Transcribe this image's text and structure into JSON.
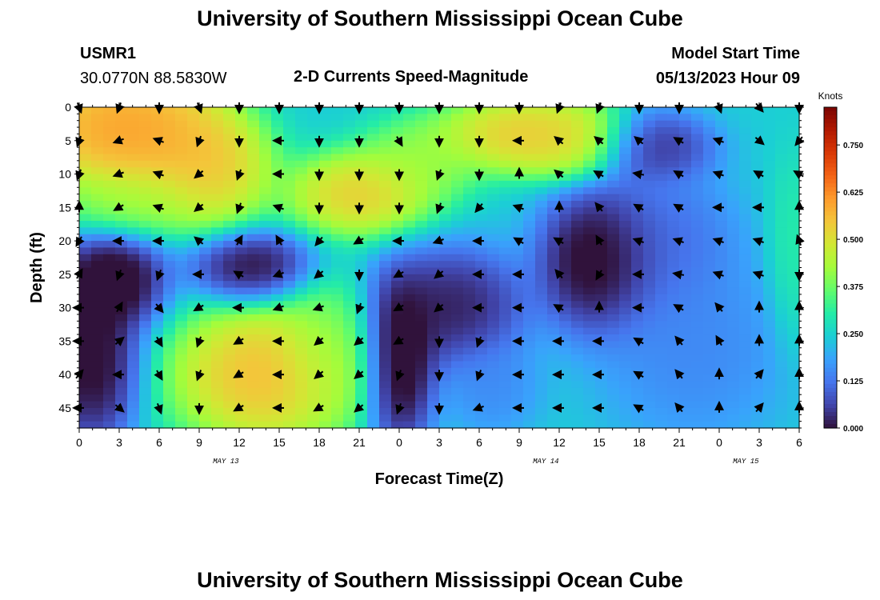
{
  "header": {
    "title": "University of Southern Mississippi Ocean Cube",
    "station": "USMR1",
    "coords": "30.0770N  88.5830W",
    "product": "2-D Currents Speed-Magnitude",
    "model_start_label": "Model Start Time",
    "model_start_value": "05/13/2023 Hour 09"
  },
  "footer": {
    "title": "University of Southern Mississippi Ocean Cube"
  },
  "chart_data": {
    "type": "heatmap",
    "title": "2-D Currents Speed-Magnitude",
    "xlabel": "Forecast Time(Z)",
    "ylabel": "Depth (ft)",
    "x_tick_labels": [
      "0",
      "3",
      "6",
      "9",
      "12",
      "15",
      "18",
      "21",
      "0",
      "3",
      "6",
      "9",
      "12",
      "15",
      "18",
      "21",
      "0",
      "3",
      "6"
    ],
    "x_range_hours": [
      0,
      54
    ],
    "date_labels": [
      {
        "text": "MAY 13",
        "hour": 11
      },
      {
        "text": "MAY 14",
        "hour": 35
      },
      {
        "text": "MAY 15",
        "hour": 50
      }
    ],
    "y_tick_labels": [
      "0",
      "5",
      "10",
      "15",
      "20",
      "25",
      "30",
      "35",
      "40",
      "45"
    ],
    "y_range": [
      0,
      48
    ],
    "y_reversed": true,
    "colorbar": {
      "title": "Knots",
      "range": [
        0,
        0.85
      ],
      "tick_values": [
        0.0,
        0.125,
        0.25,
        0.375,
        0.5,
        0.625,
        0.75
      ],
      "tick_labels": [
        "0.000",
        "0.125",
        "0.250",
        "0.375",
        "0.500",
        "0.625",
        "0.750"
      ],
      "colors": [
        "#30123b",
        "#4145ab",
        "#4675ed",
        "#39a2fc",
        "#1bcfd4",
        "#24eca6",
        "#61fc6c",
        "#a4fc3b",
        "#d1e834",
        "#f3c63a",
        "#fe9b2d",
        "#f36315",
        "#d93806",
        "#b11901",
        "#7a0402"
      ]
    },
    "speed_features": [
      {
        "t": 2,
        "d": 3,
        "speed": 0.68,
        "sx": 3.5,
        "sy": 5
      },
      {
        "t": 6,
        "d": 4,
        "speed": 0.64,
        "sx": 3,
        "sy": 5
      },
      {
        "t": 10,
        "d": 9,
        "speed": 0.62,
        "sx": 2.5,
        "sy": 5
      },
      {
        "t": 4,
        "d": 14,
        "speed": 0.45,
        "sx": 3,
        "sy": 3
      },
      {
        "t": 2.5,
        "d": 26,
        "speed": -0.12,
        "sx": 2.2,
        "sy": 4
      },
      {
        "t": 1,
        "d": 38,
        "speed": -0.1,
        "sx": 2,
        "sy": 7
      },
      {
        "t": 13,
        "d": 24,
        "speed": -0.08,
        "sx": 2.5,
        "sy": 3
      },
      {
        "t": 14,
        "d": 40,
        "speed": 0.66,
        "sx": 4,
        "sy": 6
      },
      {
        "t": 18.5,
        "d": 36,
        "speed": 0.4,
        "sx": 2,
        "sy": 6
      },
      {
        "t": 21,
        "d": 13,
        "speed": 0.62,
        "sx": 3,
        "sy": 3.5
      },
      {
        "t": 25.5,
        "d": 8,
        "speed": 0.45,
        "sx": 2.5,
        "sy": 3.5
      },
      {
        "t": 24,
        "d": 38,
        "speed": -0.14,
        "sx": 1.5,
        "sy": 7
      },
      {
        "t": 28,
        "d": 30,
        "speed": -0.05,
        "sx": 3,
        "sy": 5
      },
      {
        "t": 33,
        "d": 4,
        "speed": 0.62,
        "sx": 3.5,
        "sy": 3.2
      },
      {
        "t": 37,
        "d": 5,
        "speed": 0.55,
        "sx": 2.5,
        "sy": 3
      },
      {
        "t": 39,
        "d": 23,
        "speed": -0.12,
        "sx": 2.5,
        "sy": 6
      },
      {
        "t": 43,
        "d": 6,
        "speed": -0.02,
        "sx": 2.5,
        "sy": 3
      },
      {
        "t": 46,
        "d": 36,
        "speed": 0.12,
        "sx": 4,
        "sy": 8
      },
      {
        "t": 31,
        "d": 42,
        "speed": 0.13,
        "sx": 2,
        "sy": 4
      },
      {
        "t": 53.5,
        "d": 22,
        "speed": 0.32,
        "sx": 1,
        "sy": 8
      },
      {
        "t": 44,
        "d": 20,
        "speed": 0.08,
        "sx": 3,
        "sy": 6
      }
    ],
    "arrow_times": [
      0,
      3,
      6,
      9,
      12,
      15,
      18,
      21,
      24,
      27,
      30,
      33,
      36,
      39,
      42,
      45,
      48,
      51,
      54
    ],
    "arrow_depths": [
      0,
      5,
      10,
      15,
      20,
      25,
      30,
      35,
      40,
      45
    ],
    "arrow_directions_deg": [
      [
        160,
        200,
        180,
        160,
        180,
        180,
        180,
        180,
        180,
        180,
        180,
        180,
        200,
        200,
        180,
        180,
        160,
        140,
        180
      ],
      [
        200,
        250,
        290,
        200,
        180,
        270,
        180,
        180,
        150,
        180,
        180,
        270,
        310,
        310,
        310,
        300,
        290,
        130,
        220
      ],
      [
        200,
        250,
        290,
        230,
        200,
        270,
        180,
        180,
        180,
        200,
        180,
        0,
        310,
        300,
        280,
        300,
        290,
        300,
        300
      ],
      [
        0,
        240,
        290,
        230,
        200,
        290,
        180,
        180,
        180,
        200,
        220,
        290,
        0,
        320,
        300,
        300,
        270,
        270,
        0
      ],
      [
        210,
        270,
        270,
        310,
        30,
        330,
        220,
        240,
        270,
        250,
        270,
        300,
        300,
        330,
        290,
        290,
        290,
        290,
        340
      ],
      [
        30,
        200,
        200,
        270,
        300,
        250,
        230,
        180,
        240,
        230,
        270,
        270,
        320,
        210,
        270,
        280,
        290,
        290,
        180
      ],
      [
        270,
        30,
        140,
        240,
        270,
        250,
        250,
        200,
        240,
        230,
        270,
        270,
        300,
        0,
        270,
        300,
        320,
        0,
        0
      ],
      [
        270,
        50,
        150,
        200,
        240,
        270,
        230,
        230,
        240,
        180,
        200,
        270,
        270,
        270,
        300,
        320,
        330,
        0,
        0
      ],
      [
        40,
        270,
        150,
        200,
        240,
        270,
        230,
        230,
        200,
        180,
        200,
        270,
        270,
        270,
        300,
        320,
        0,
        40,
        0
      ],
      [
        270,
        130,
        160,
        180,
        240,
        270,
        240,
        230,
        200,
        180,
        250,
        270,
        270,
        270,
        300,
        320,
        0,
        40,
        0
      ]
    ]
  }
}
